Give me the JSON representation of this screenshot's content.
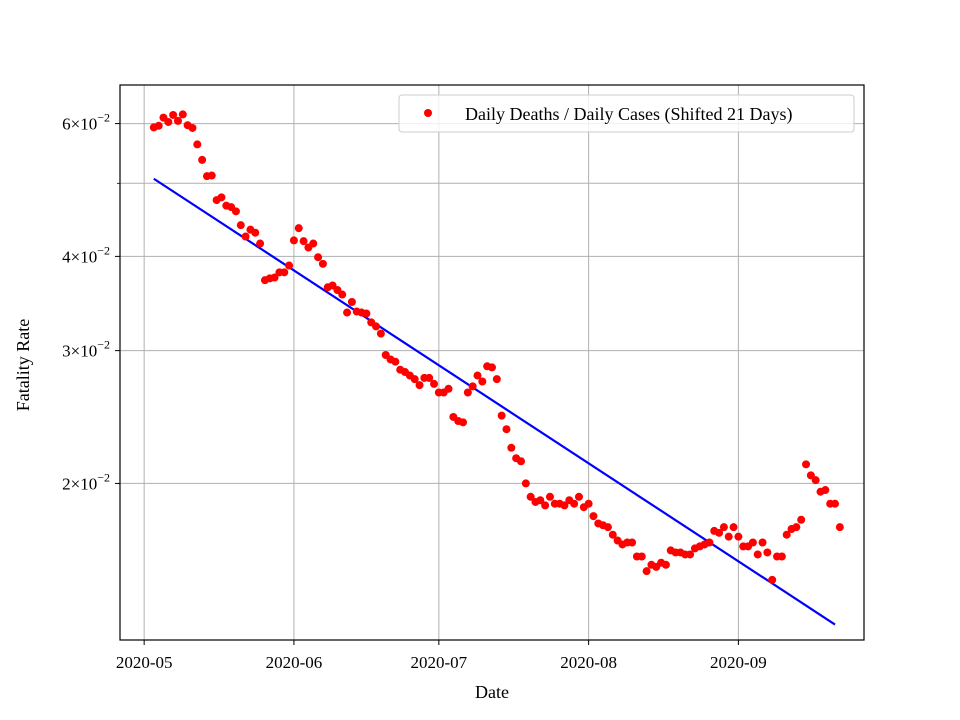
{
  "chart_data": {
    "type": "scatter",
    "xlabel": "Date",
    "ylabel": "Fatality Rate",
    "y_scale": "log",
    "xlim": [
      "2020-04-26",
      "2020-09-27"
    ],
    "ylim": [
      0.0124,
      0.0675
    ],
    "grid": true,
    "legend_position": "top-right",
    "x_ticks": [
      "2020-05-01",
      "2020-06-01",
      "2020-07-01",
      "2020-08-01",
      "2020-09-01"
    ],
    "x_tick_labels": [
      "2020-05",
      "2020-06",
      "2020-07",
      "2020-08",
      "2020-09"
    ],
    "y_major_ticks": [
      0.02,
      0.03,
      0.04,
      0.06
    ],
    "y_tick_labels": [
      {
        "mantissa": "2",
        "exponent": "−2"
      },
      {
        "mantissa": "3",
        "exponent": "−2"
      },
      {
        "mantissa": "4",
        "exponent": "−2"
      },
      {
        "mantissa": "6",
        "exponent": "−2"
      }
    ],
    "y_minor_ticks": [
      0.05
    ],
    "series": [
      {
        "name": "Daily Deaths / Daily Cases (Shifted 21 Days)",
        "type": "scatter",
        "color": "#ff0000",
        "start_date": "2020-05-03",
        "values": [
          0.0593,
          0.0596,
          0.0611,
          0.0603,
          0.0616,
          0.0605,
          0.0617,
          0.0597,
          0.0592,
          0.0563,
          0.0537,
          0.0511,
          0.0512,
          0.0475,
          0.0479,
          0.0467,
          0.0465,
          0.0459,
          0.044,
          0.0425,
          0.0434,
          0.043,
          0.0416,
          0.0372,
          0.0374,
          0.0375,
          0.0381,
          0.0381,
          0.0389,
          0.042,
          0.0436,
          0.0419,
          0.0411,
          0.0416,
          0.0399,
          0.0391,
          0.0364,
          0.0366,
          0.0361,
          0.0356,
          0.0337,
          0.0348,
          0.0338,
          0.0337,
          0.0336,
          0.0327,
          0.0323,
          0.0316,
          0.0296,
          0.0292,
          0.029,
          0.0283,
          0.0281,
          0.0278,
          0.0275,
          0.027,
          0.0276,
          0.0276,
          0.0271,
          0.0264,
          0.0264,
          0.0267,
          0.0245,
          0.0242,
          0.0241,
          0.0264,
          0.0269,
          0.0278,
          0.0273,
          0.0286,
          0.0285,
          0.0275,
          0.0246,
          0.0236,
          0.0223,
          0.0216,
          0.0214,
          0.02,
          0.0192,
          0.0189,
          0.019,
          0.0187,
          0.0192,
          0.0188,
          0.0188,
          0.0187,
          0.019,
          0.0188,
          0.0192,
          0.0186,
          0.0188,
          0.0181,
          0.0177,
          0.0176,
          0.0175,
          0.0171,
          0.0168,
          0.0166,
          0.0167,
          0.0167,
          0.016,
          0.016,
          0.0153,
          0.0156,
          0.0155,
          0.0157,
          0.0156,
          0.0163,
          0.0162,
          0.0162,
          0.0161,
          0.0161,
          0.0164,
          0.0165,
          0.0166,
          0.0167,
          0.0173,
          0.0172,
          0.0175,
          0.017,
          0.0175,
          0.017,
          0.0165,
          0.0165,
          0.0167,
          0.0161,
          0.0167,
          0.0162,
          0.0149,
          0.016,
          0.016,
          0.0171,
          0.0174,
          0.0175,
          0.0179,
          0.0212,
          0.0205,
          0.0202,
          0.0195,
          0.0196,
          0.0188,
          0.0188,
          0.0175
        ]
      },
      {
        "type": "line",
        "color": "#0000ff",
        "x": [
          "2020-05-03",
          "2020-09-21"
        ],
        "values": [
          0.0507,
          0.013
        ]
      }
    ]
  }
}
